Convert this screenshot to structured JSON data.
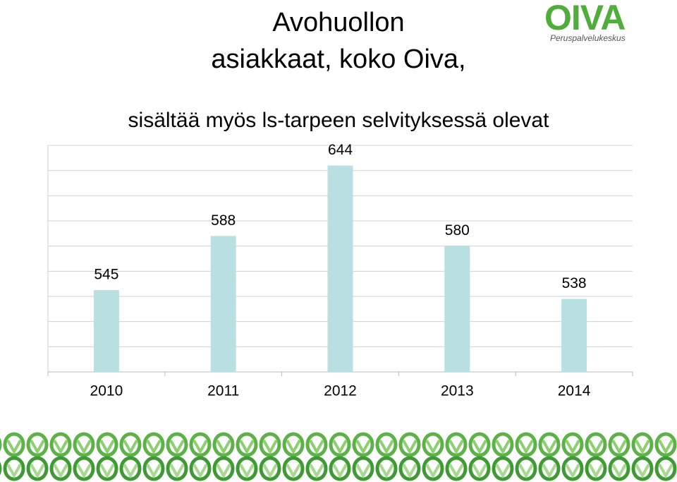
{
  "logo": {
    "mark": "OIVA",
    "subtitle": "Peruspalvelukeskus"
  },
  "chart_data": {
    "type": "bar",
    "title": "Avohuollon\nasiakkaat, koko Oiva,",
    "subtitle": "sisältää myös ls-tarpeen selvityksessä olevat",
    "categories": [
      "2010",
      "2011",
      "2012",
      "2013",
      "2014"
    ],
    "values": [
      545,
      588,
      644,
      580,
      538
    ],
    "color": "#b8dfe1",
    "ylim": [
      480,
      660
    ],
    "yticks": [
      480,
      500,
      520,
      540,
      560,
      580,
      600,
      620,
      640,
      660
    ],
    "grid": true
  }
}
